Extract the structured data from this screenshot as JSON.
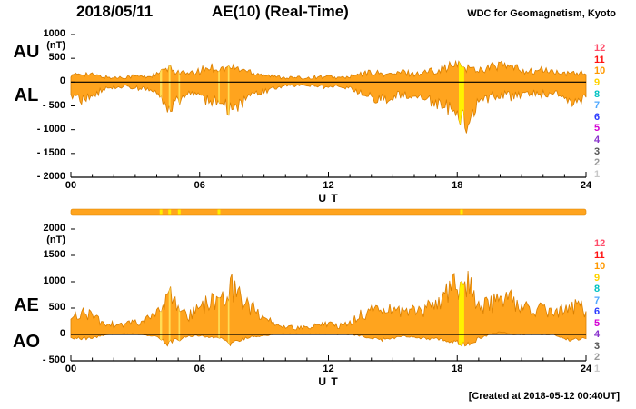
{
  "header": {
    "date": "2018/05/11",
    "title": "AE(10) (Real-Time)",
    "source": "WDC for Geomagnetism, Kyoto"
  },
  "footer": {
    "created": "[Created at 2018-05-12 00:40UT]"
  },
  "station_scale": {
    "values": [
      "12",
      "11",
      "10",
      "9",
      "8",
      "7",
      "6",
      "5",
      "4",
      "3",
      "2",
      "1"
    ],
    "colors": [
      "#FF4D6A",
      "#FF1111",
      "#FF9900",
      "#FFD300",
      "#00C2C2",
      "#4FA8FF",
      "#2B3BFF",
      "#D400D4",
      "#8833CC",
      "#555555",
      "#999999",
      "#C8C8C8"
    ]
  },
  "availability_bar": {
    "color": "#FFA41E",
    "stroke": "#D98200",
    "stripe_color": "#FFF000",
    "stripes": [
      4.2,
      4.6,
      5.05,
      6.9,
      18.2
    ]
  },
  "chart_data": [
    {
      "type": "area",
      "title": "AU / AL auroral electrojet indices (upper panel)",
      "xlabel": "U T",
      "ylabel": "(nT)",
      "xlim": [
        0,
        24
      ],
      "ylim": [
        -2000,
        1000
      ],
      "yticks": [
        1000,
        500,
        0,
        -500,
        -1000,
        -1500,
        -2000
      ],
      "ytick_labels": [
        "1000",
        "500",
        "0",
        "- 500",
        "- 1000",
        "- 1500",
        "- 2000"
      ],
      "xticks": [
        0,
        6,
        12,
        18,
        24
      ],
      "xtick_labels": [
        "00",
        "06",
        "12",
        "18",
        "24"
      ],
      "fill_color": "#FFA41E",
      "stroke_color": "#D97F00",
      "series_labels": [
        "AU",
        "AL"
      ],
      "x": [
        0,
        0.5,
        1,
        1.5,
        2,
        2.5,
        3,
        3.5,
        4,
        4.5,
        5,
        5.5,
        6,
        6.5,
        7,
        7.5,
        8,
        8.5,
        9,
        9.5,
        10,
        10.5,
        11,
        11.5,
        12,
        12.5,
        13,
        13.5,
        14,
        14.5,
        15,
        15.5,
        16,
        16.5,
        17,
        17.5,
        18,
        18.5,
        19,
        19.5,
        20,
        20.5,
        21,
        21.5,
        22,
        22.5,
        23,
        23.5,
        24
      ],
      "series": [
        {
          "name": "AU",
          "values": [
            120,
            190,
            150,
            110,
            90,
            110,
            130,
            110,
            160,
            280,
            220,
            160,
            230,
            320,
            270,
            310,
            260,
            210,
            160,
            110,
            100,
            90,
            90,
            110,
            110,
            90,
            110,
            160,
            210,
            170,
            160,
            210,
            170,
            210,
            260,
            310,
            360,
            300,
            260,
            310,
            360,
            310,
            260,
            210,
            260,
            210,
            160,
            210,
            160
          ]
        },
        {
          "name": "AL",
          "values": [
            -250,
            -360,
            -280,
            -160,
            -110,
            -100,
            -120,
            -160,
            -230,
            -620,
            -420,
            -230,
            -280,
            -430,
            -380,
            -680,
            -430,
            -300,
            -200,
            -120,
            -80,
            -70,
            -70,
            -90,
            -110,
            -90,
            -120,
            -230,
            -330,
            -360,
            -300,
            -260,
            -330,
            -360,
            -430,
            -520,
            -650,
            -920,
            -430,
            -320,
            -260,
            -300,
            -260,
            -220,
            -260,
            -220,
            -330,
            -430,
            -320
          ]
        }
      ],
      "stripes": [
        {
          "x": 4.2,
          "w": 0.1,
          "c": "#FFDD55"
        },
        {
          "x": 4.6,
          "w": 0.08,
          "c": "#FFDD55"
        },
        {
          "x": 5.05,
          "w": 0.07,
          "c": "#FFDD55"
        },
        {
          "x": 6.9,
          "w": 0.07,
          "c": "#FFDD55"
        },
        {
          "x": 7.35,
          "w": 0.07,
          "c": "#FFDD55"
        },
        {
          "x": 18.2,
          "w": 0.25,
          "c": "#FFF200"
        }
      ]
    },
    {
      "type": "area",
      "title": "AE / AO auroral electrojet indices (lower panel)",
      "xlabel": "U T",
      "ylabel": "(nT)",
      "xlim": [
        0,
        24
      ],
      "ylim": [
        -500,
        2000
      ],
      "yticks": [
        2000,
        1500,
        1000,
        500,
        0,
        -500
      ],
      "ytick_labels": [
        "2000",
        "1500",
        "1000",
        "500",
        "0",
        "- 500"
      ],
      "xticks": [
        0,
        6,
        12,
        18,
        24
      ],
      "xtick_labels": [
        "00",
        "06",
        "12",
        "18",
        "24"
      ],
      "fill_color": "#FFA41E",
      "stroke_color": "#D97F00",
      "series_labels": [
        "AE",
        "AO"
      ],
      "x": [
        0,
        0.5,
        1,
        1.5,
        2,
        2.5,
        3,
        3.5,
        4,
        4.5,
        5,
        5.5,
        6,
        6.5,
        7,
        7.5,
        8,
        8.5,
        9,
        9.5,
        10,
        10.5,
        11,
        11.5,
        12,
        12.5,
        13,
        13.5,
        14,
        14.5,
        15,
        15.5,
        16,
        16.5,
        17,
        17.5,
        18,
        18.5,
        19,
        19.5,
        20,
        20.5,
        21,
        21.5,
        22,
        22.5,
        23,
        23.5,
        24
      ],
      "series": [
        {
          "name": "AE",
          "values": [
            310,
            430,
            350,
            230,
            180,
            190,
            230,
            260,
            360,
            800,
            570,
            380,
            460,
            630,
            580,
            870,
            650,
            480,
            330,
            200,
            150,
            130,
            130,
            170,
            190,
            160,
            200,
            360,
            490,
            500,
            420,
            400,
            460,
            500,
            580,
            780,
            920,
            950,
            600,
            560,
            620,
            640,
            520,
            420,
            480,
            400,
            440,
            560,
            440
          ]
        },
        {
          "name": "AO",
          "values": [
            -60,
            -80,
            -60,
            -20,
            0,
            10,
            10,
            -20,
            -30,
            -170,
            -100,
            -30,
            -30,
            -60,
            -60,
            -190,
            -80,
            -40,
            -20,
            0,
            10,
            10,
            10,
            10,
            0,
            0,
            0,
            -30,
            -60,
            -100,
            -70,
            -20,
            -70,
            -80,
            -80,
            -110,
            -140,
            -200,
            -80,
            0,
            50,
            0,
            0,
            0,
            0,
            0,
            -80,
            -100,
            -80
          ]
        }
      ],
      "stripes": [
        {
          "x": 4.2,
          "w": 0.1,
          "c": "#FFDD55"
        },
        {
          "x": 4.6,
          "w": 0.08,
          "c": "#FFDD55"
        },
        {
          "x": 5.05,
          "w": 0.07,
          "c": "#FFDD55"
        },
        {
          "x": 6.9,
          "w": 0.07,
          "c": "#FFDD55"
        },
        {
          "x": 7.35,
          "w": 0.07,
          "c": "#FFDD55"
        },
        {
          "x": 18.2,
          "w": 0.25,
          "c": "#FFF200"
        }
      ]
    }
  ]
}
